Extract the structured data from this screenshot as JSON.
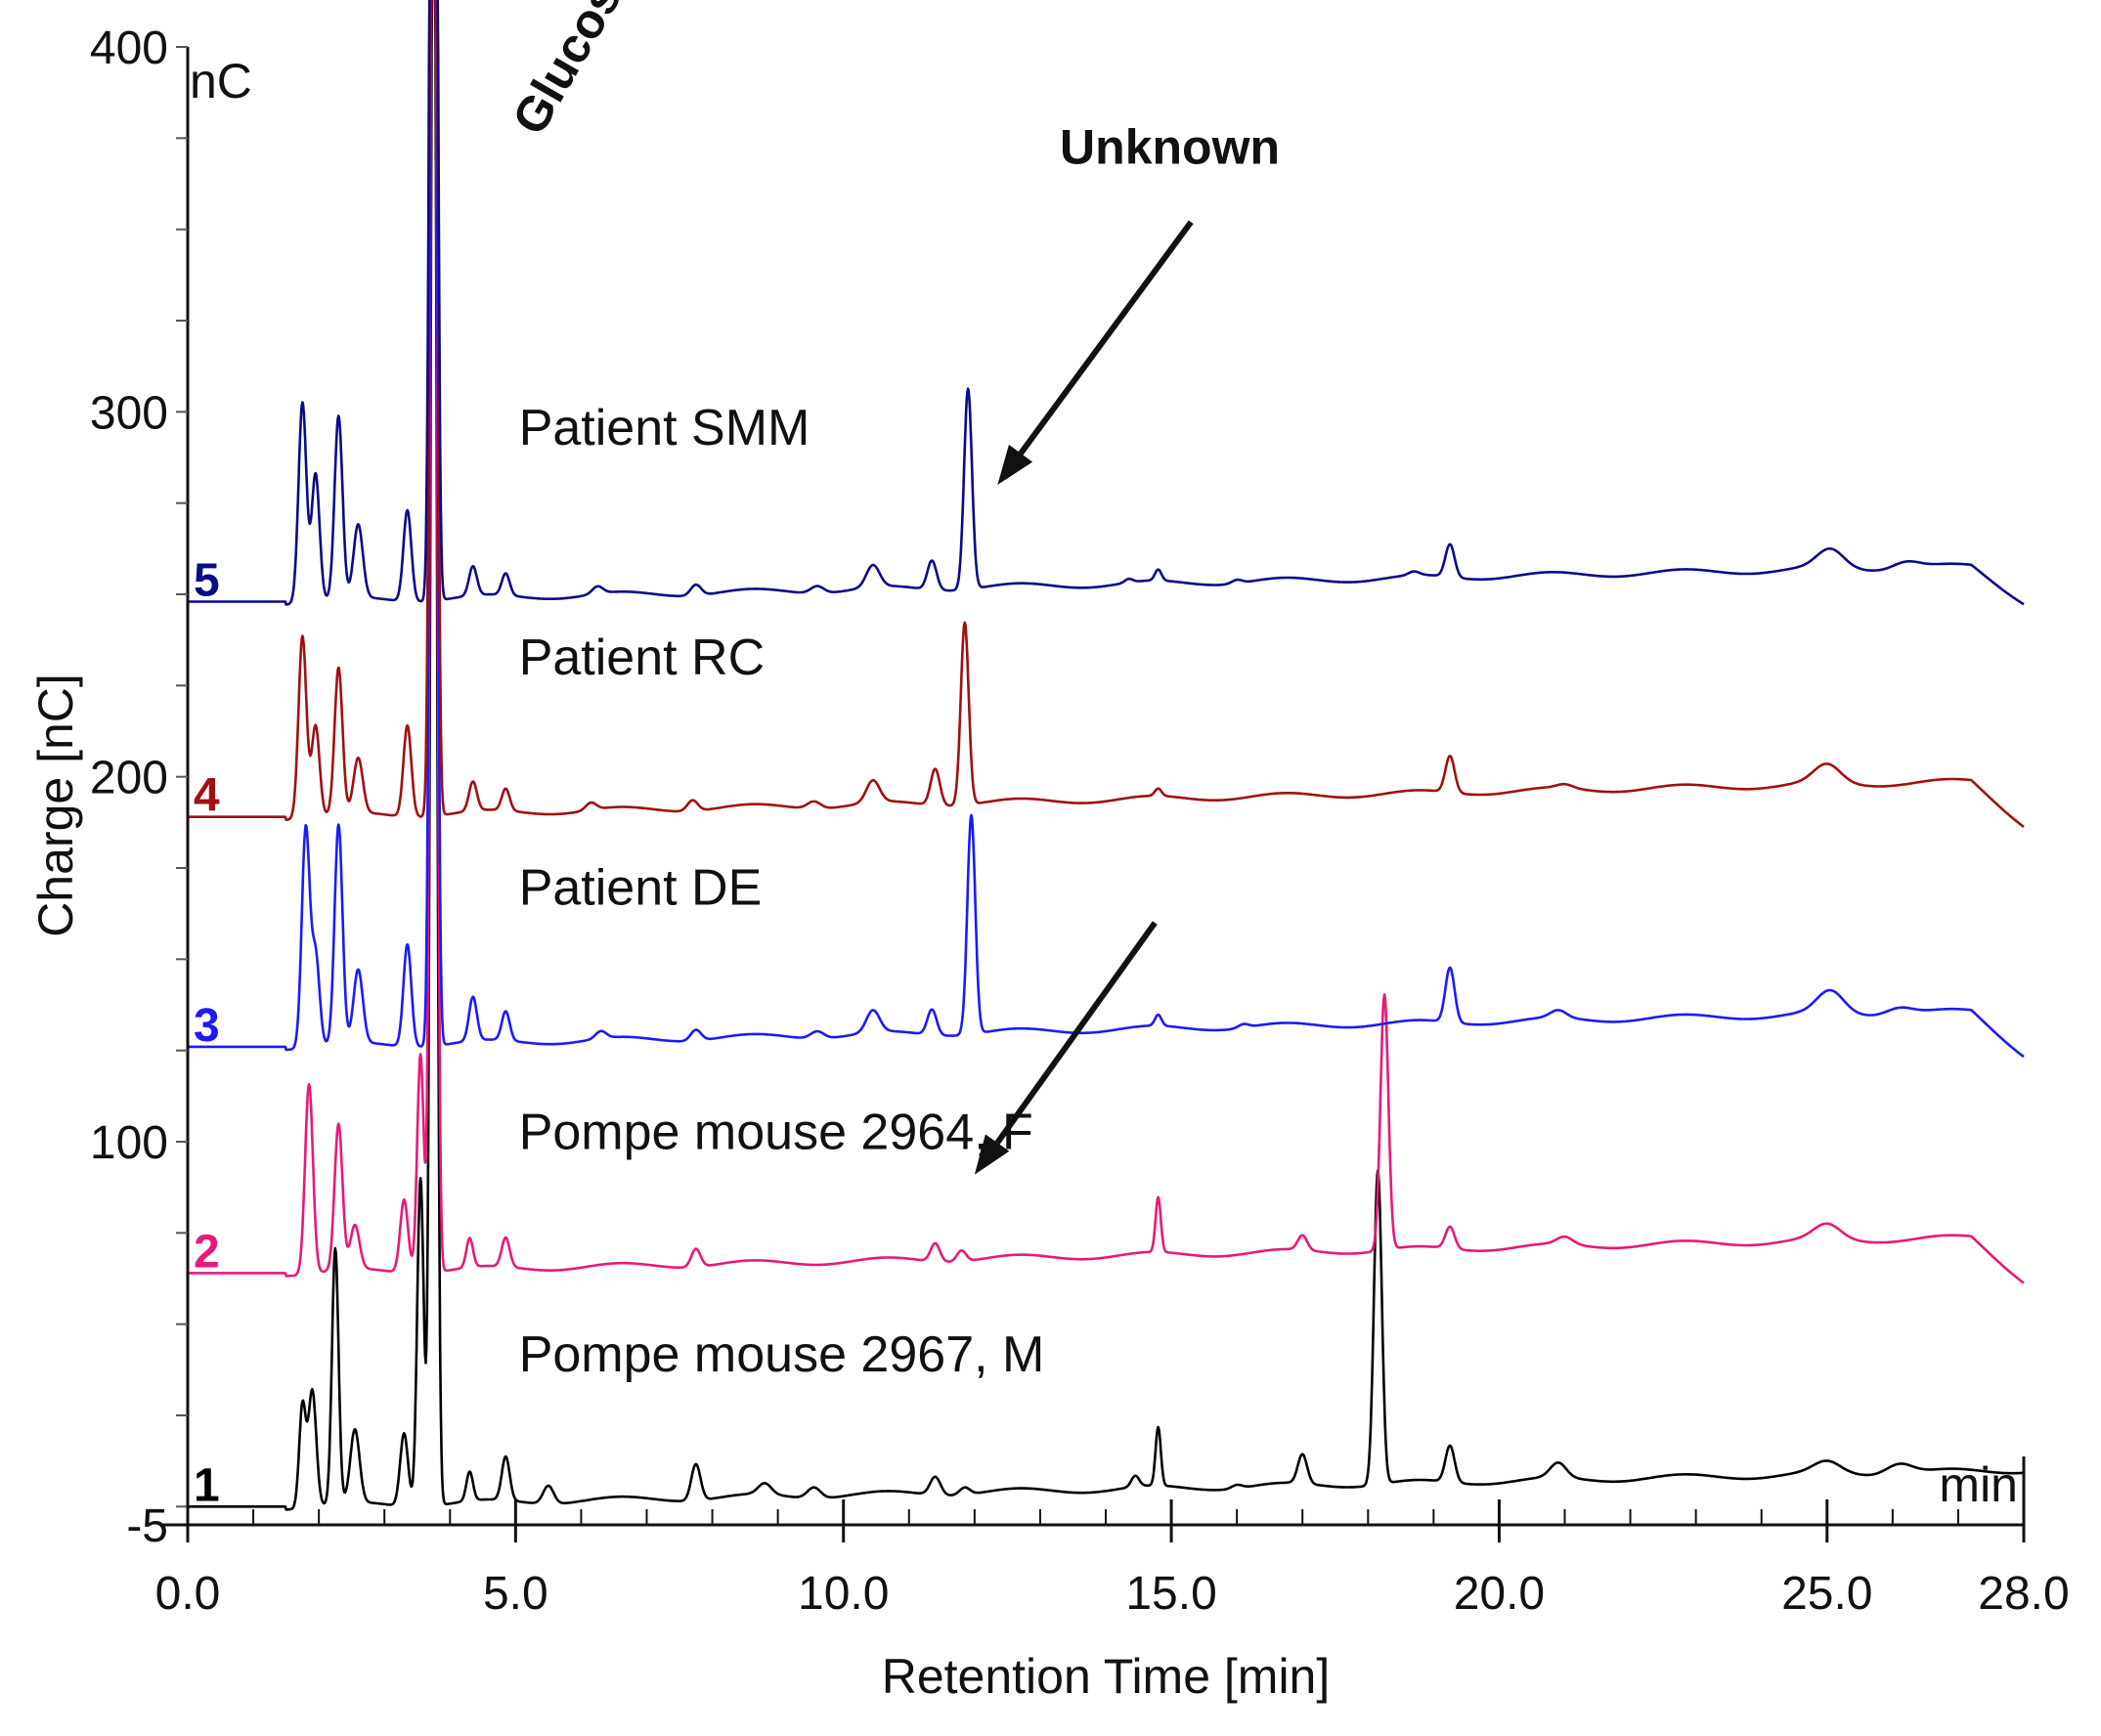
{
  "chart_data": {
    "type": "line",
    "x_axis": {
      "label": "Retention Time [min]",
      "unit_label": "min",
      "range": [
        0,
        28
      ],
      "tick_labels": [
        "0.0",
        "5.0",
        "10.0",
        "15.0",
        "20.0",
        "25.0",
        "28.0"
      ],
      "tick_values": [
        0,
        5,
        10,
        15,
        20,
        25,
        28
      ]
    },
    "y_axis": {
      "label": "Charge [nC]",
      "unit_label": "nC",
      "range": [
        -5,
        400
      ],
      "tick_labels": [
        "-5",
        "100",
        "200",
        "300",
        "400"
      ],
      "tick_values": [
        -5,
        100,
        200,
        300,
        400
      ]
    },
    "annotations": {
      "glucose": "Glucose",
      "unknown": "Unknown"
    },
    "glucose_peak_x": 3.7,
    "series": [
      {
        "id": "1",
        "number": "1",
        "name": "Pompe mouse 2967, M",
        "color": "#000000",
        "baseline": 0,
        "end_drop": 0,
        "peaks": [
          [
            1.75,
            28,
            0.05
          ],
          [
            1.9,
            32,
            0.06
          ],
          [
            2.25,
            70,
            0.05
          ],
          [
            2.55,
            20,
            0.07
          ],
          [
            3.3,
            20,
            0.06
          ],
          [
            3.55,
            90,
            0.05
          ],
          [
            3.75,
            500,
            0.045
          ],
          [
            4.3,
            8,
            0.05
          ],
          [
            4.85,
            12,
            0.06
          ],
          [
            5.5,
            5,
            0.08
          ],
          [
            7.75,
            10,
            0.07
          ],
          [
            8.8,
            3,
            0.1
          ],
          [
            9.55,
            3,
            0.1
          ],
          [
            11.4,
            5,
            0.08
          ],
          [
            11.85,
            2,
            0.08
          ],
          [
            14.45,
            3,
            0.06
          ],
          [
            14.8,
            16,
            0.04
          ],
          [
            16.0,
            1,
            0.08
          ],
          [
            17.0,
            8,
            0.07
          ],
          [
            18.15,
            86,
            0.06
          ],
          [
            19.25,
            10,
            0.07
          ],
          [
            20.9,
            4,
            0.12
          ],
          [
            25.0,
            3,
            0.2
          ],
          [
            26.1,
            3,
            0.2
          ]
        ],
        "label_x": 5.05,
        "label_y": 37
      },
      {
        "id": "2",
        "number": "2",
        "name": "Pompe mouse 2964, F",
        "color": "#e8197a",
        "baseline": 64,
        "end_drop": 12,
        "peaks": [
          [
            1.85,
            52,
            0.06
          ],
          [
            2.3,
            40,
            0.06
          ],
          [
            2.55,
            12,
            0.07
          ],
          [
            3.3,
            20,
            0.06
          ],
          [
            3.55,
            60,
            0.05
          ],
          [
            3.75,
            500,
            0.045
          ],
          [
            4.3,
            8,
            0.05
          ],
          [
            4.85,
            8,
            0.06
          ],
          [
            7.75,
            5,
            0.07
          ],
          [
            11.4,
            5,
            0.07
          ],
          [
            11.8,
            3,
            0.07
          ],
          [
            14.8,
            15,
            0.04
          ],
          [
            17.0,
            4,
            0.07
          ],
          [
            18.25,
            70,
            0.06
          ],
          [
            19.25,
            6,
            0.07
          ],
          [
            21.0,
            2,
            0.12
          ],
          [
            25.0,
            4,
            0.2
          ]
        ],
        "label_x": 5.05,
        "label_y": 98
      },
      {
        "id": "3",
        "number": "3",
        "name": "Patient DE",
        "color": "#1a1aff",
        "baseline": 126,
        "end_drop": 12,
        "peaks": [
          [
            1.8,
            60,
            0.06
          ],
          [
            1.95,
            25,
            0.06
          ],
          [
            2.3,
            60,
            0.06
          ],
          [
            2.6,
            20,
            0.07
          ],
          [
            3.35,
            28,
            0.06
          ],
          [
            3.75,
            500,
            0.045
          ],
          [
            4.35,
            12,
            0.06
          ],
          [
            4.85,
            8,
            0.06
          ],
          [
            6.3,
            2,
            0.08
          ],
          [
            7.75,
            3,
            0.08
          ],
          [
            9.6,
            2,
            0.1
          ],
          [
            10.45,
            6,
            0.1
          ],
          [
            11.35,
            7,
            0.07
          ],
          [
            11.95,
            60,
            0.06
          ],
          [
            14.8,
            3,
            0.05
          ],
          [
            16.1,
            1,
            0.08
          ],
          [
            19.25,
            15,
            0.07
          ],
          [
            20.9,
            2,
            0.12
          ],
          [
            25.05,
            6,
            0.2
          ],
          [
            26.1,
            2,
            0.2
          ]
        ],
        "label_x": 5.05,
        "label_y": 165
      },
      {
        "id": "4",
        "number": "4",
        "name": "Patient RC",
        "color": "#a01010",
        "baseline": 189,
        "end_drop": 12,
        "peaks": [
          [
            1.75,
            50,
            0.06
          ],
          [
            1.95,
            25,
            0.06
          ],
          [
            2.3,
            40,
            0.06
          ],
          [
            2.6,
            15,
            0.07
          ],
          [
            3.35,
            25,
            0.06
          ],
          [
            3.75,
            500,
            0.045
          ],
          [
            4.35,
            8,
            0.06
          ],
          [
            4.85,
            6,
            0.06
          ],
          [
            6.15,
            2,
            0.08
          ],
          [
            7.7,
            3,
            0.08
          ],
          [
            9.55,
            2,
            0.1
          ],
          [
            10.45,
            6,
            0.1
          ],
          [
            11.4,
            10,
            0.07
          ],
          [
            11.85,
            50,
            0.06
          ],
          [
            14.8,
            2,
            0.05
          ],
          [
            19.25,
            10,
            0.07
          ],
          [
            21.0,
            1,
            0.12
          ],
          [
            25.0,
            5,
            0.2
          ]
        ],
        "label_x": 5.05,
        "label_y": 228
      },
      {
        "id": "5",
        "number": "5",
        "name": "Patient SMM",
        "color": "#0a0a8a",
        "baseline": 248,
        "end_drop": 10,
        "peaks": [
          [
            1.75,
            55,
            0.06
          ],
          [
            1.95,
            35,
            0.06
          ],
          [
            2.3,
            50,
            0.06
          ],
          [
            2.6,
            20,
            0.07
          ],
          [
            3.35,
            25,
            0.06
          ],
          [
            3.75,
            500,
            0.045
          ],
          [
            4.35,
            8,
            0.06
          ],
          [
            4.85,
            6,
            0.06
          ],
          [
            6.25,
            2,
            0.08
          ],
          [
            7.75,
            3,
            0.08
          ],
          [
            9.6,
            2,
            0.1
          ],
          [
            10.45,
            6,
            0.1
          ],
          [
            11.35,
            8,
            0.07
          ],
          [
            11.9,
            55,
            0.06
          ],
          [
            14.35,
            1,
            0.06
          ],
          [
            14.8,
            3,
            0.05
          ],
          [
            16.0,
            1,
            0.08
          ],
          [
            18.7,
            1,
            0.08
          ],
          [
            19.25,
            9,
            0.07
          ],
          [
            25.05,
            5,
            0.2
          ],
          [
            26.2,
            2,
            0.2
          ]
        ],
        "label_x": 5.05,
        "label_y": 291
      }
    ],
    "arrows": [
      {
        "from": [
          15.3,
          352
        ],
        "to": [
          12.35,
          280
        ]
      },
      {
        "from": [
          14.75,
          160
        ],
        "to": [
          12.0,
          91
        ]
      }
    ],
    "grid": false,
    "legend": "inline-labels"
  }
}
